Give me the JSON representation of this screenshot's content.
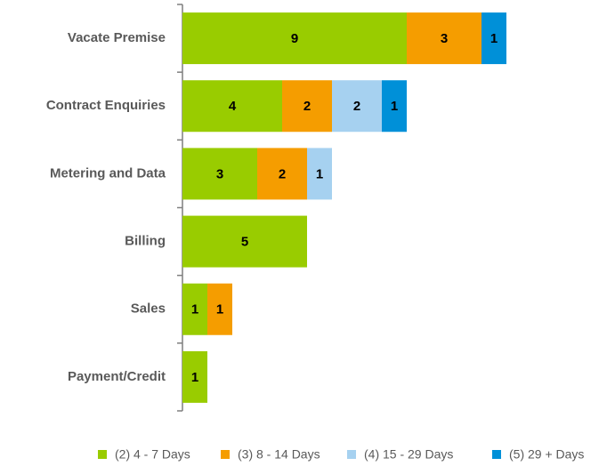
{
  "chart_data": {
    "type": "bar",
    "orientation": "horizontal",
    "stacked": true,
    "categories": [
      "Vacate Premise",
      "Contract Enquiries",
      "Metering and Data",
      "Billing",
      "Sales",
      "Payment/Credit"
    ],
    "series": [
      {
        "name": "(2) 4 - 7 Days",
        "color": "#99cc00",
        "values": [
          9,
          4,
          3,
          5,
          1,
          1
        ]
      },
      {
        "name": "(3) 8 - 14 Days",
        "color": "#f59d00",
        "values": [
          3,
          2,
          2,
          null,
          1,
          null
        ]
      },
      {
        "name": "(4) 15 - 29 Days",
        "color": "#a6d1f0",
        "values": [
          null,
          2,
          1,
          null,
          null,
          null
        ]
      },
      {
        "name": "(5) 29 + Days",
        "color": "#0090d8",
        "values": [
          1,
          1,
          null,
          null,
          null,
          null
        ]
      }
    ],
    "legend": "bottom"
  }
}
